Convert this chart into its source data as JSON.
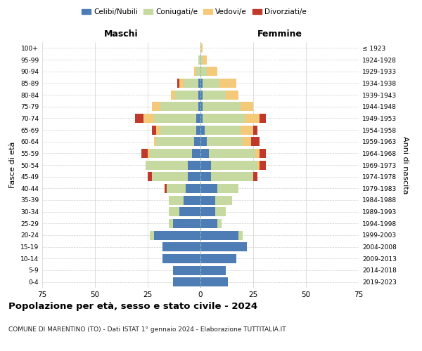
{
  "age_groups": [
    "0-4",
    "5-9",
    "10-14",
    "15-19",
    "20-24",
    "25-29",
    "30-34",
    "35-39",
    "40-44",
    "45-49",
    "50-54",
    "55-59",
    "60-64",
    "65-69",
    "70-74",
    "75-79",
    "80-84",
    "85-89",
    "90-94",
    "95-99",
    "100+"
  ],
  "birth_years": [
    "2019-2023",
    "2014-2018",
    "2009-2013",
    "2004-2008",
    "1999-2003",
    "1994-1998",
    "1989-1993",
    "1984-1988",
    "1979-1983",
    "1974-1978",
    "1969-1973",
    "1964-1968",
    "1959-1963",
    "1954-1958",
    "1949-1953",
    "1944-1948",
    "1939-1943",
    "1934-1938",
    "1929-1933",
    "1924-1928",
    "≤ 1923"
  ],
  "male_celibi": [
    13,
    13,
    18,
    18,
    22,
    13,
    10,
    8,
    7,
    6,
    6,
    4,
    3,
    2,
    2,
    1,
    1,
    1,
    0,
    0,
    0
  ],
  "male_coniugati": [
    0,
    0,
    0,
    0,
    2,
    2,
    5,
    7,
    9,
    17,
    20,
    20,
    18,
    17,
    20,
    18,
    11,
    7,
    2,
    1,
    0
  ],
  "male_vedovi": [
    0,
    0,
    0,
    0,
    0,
    0,
    0,
    0,
    0,
    0,
    0,
    1,
    1,
    2,
    5,
    4,
    2,
    2,
    1,
    0,
    0
  ],
  "male_divorziati": [
    0,
    0,
    0,
    0,
    0,
    0,
    0,
    0,
    1,
    2,
    0,
    3,
    0,
    2,
    4,
    0,
    0,
    1,
    0,
    0,
    0
  ],
  "female_celibi": [
    13,
    12,
    17,
    22,
    18,
    8,
    7,
    7,
    8,
    5,
    5,
    4,
    3,
    2,
    1,
    1,
    1,
    1,
    0,
    0,
    0
  ],
  "female_coniugati": [
    0,
    0,
    0,
    0,
    2,
    2,
    5,
    8,
    10,
    20,
    22,
    22,
    17,
    17,
    20,
    18,
    11,
    8,
    3,
    1,
    0
  ],
  "female_vedovi": [
    0,
    0,
    0,
    0,
    0,
    0,
    0,
    0,
    0,
    0,
    1,
    2,
    4,
    6,
    7,
    6,
    6,
    8,
    5,
    2,
    1
  ],
  "female_divorziati": [
    0,
    0,
    0,
    0,
    0,
    0,
    0,
    0,
    0,
    2,
    3,
    3,
    4,
    2,
    3,
    0,
    0,
    0,
    0,
    0,
    0
  ],
  "colors": {
    "celibi": "#4e7db5",
    "coniugati": "#c5d9a0",
    "vedovi": "#f5c97a",
    "divorziati": "#c0392b"
  },
  "title": "Popolazione per età, sesso e stato civile - 2024",
  "subtitle": "COMUNE DI MARENTINO (TO) - Dati ISTAT 1° gennaio 2024 - Elaborazione TUTTITALIA.IT",
  "xlabel_left": "Maschi",
  "xlabel_right": "Femmine",
  "ylabel_left": "Fasce di età",
  "ylabel_right": "Anni di nascita",
  "xlim": 75,
  "background_color": "#ffffff",
  "grid_color": "#d0d0d0"
}
